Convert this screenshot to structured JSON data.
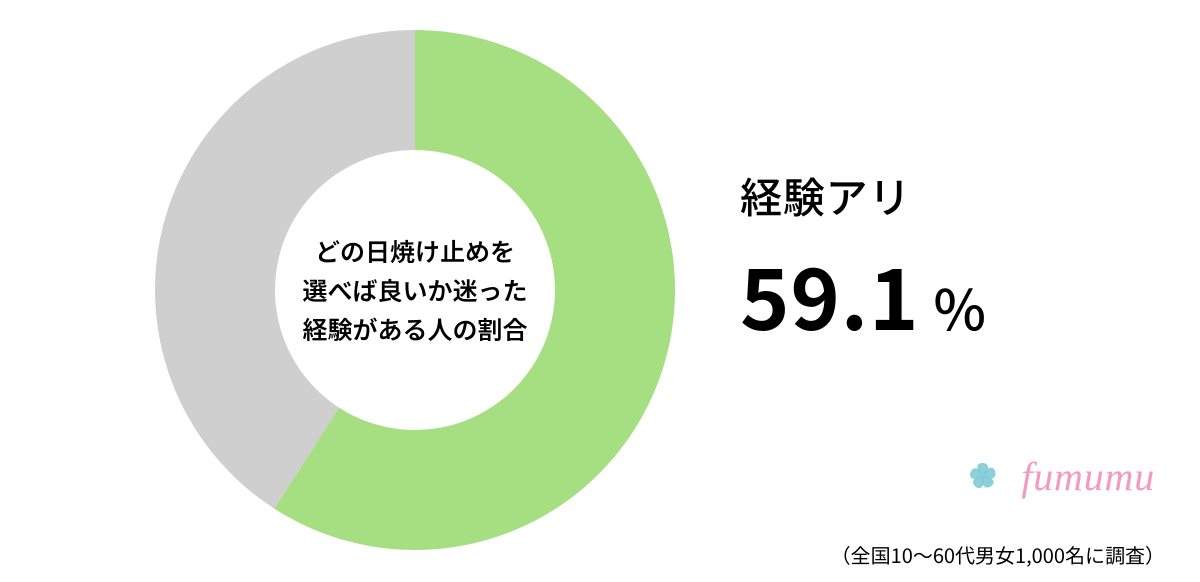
{
  "chart": {
    "type": "donut",
    "percent": 59.1,
    "start_angle_deg": 0,
    "direction": "clockwise",
    "colors": {
      "primary": "#a5df82",
      "rest": "#cfcfcf",
      "background": "#ffffff",
      "text": "#000000"
    },
    "outer_radius": 260,
    "inner_radius": 140,
    "center_label": {
      "line1": "どの日焼け止めを",
      "line2": "選べば良いか迷った",
      "line3": "経験がある人の割合",
      "fontsize": 25,
      "color": "#000000",
      "weight": 600
    }
  },
  "value": {
    "label": "経験アリ",
    "label_fontsize": 42,
    "label_color": "#000000",
    "number": "59.1",
    "number_fontsize": 84,
    "number_color": "#000000",
    "unit": "%",
    "unit_fontsize": 56,
    "unit_color": "#000000"
  },
  "brand": {
    "name": "fumumu",
    "name_fontsize": 40,
    "name_color": "#f49abf",
    "mark_color": "#7ac8d4"
  },
  "footnote": {
    "text": "（全国10～60代男女1,000名に調査）",
    "fontsize": 20,
    "color": "#000000"
  }
}
